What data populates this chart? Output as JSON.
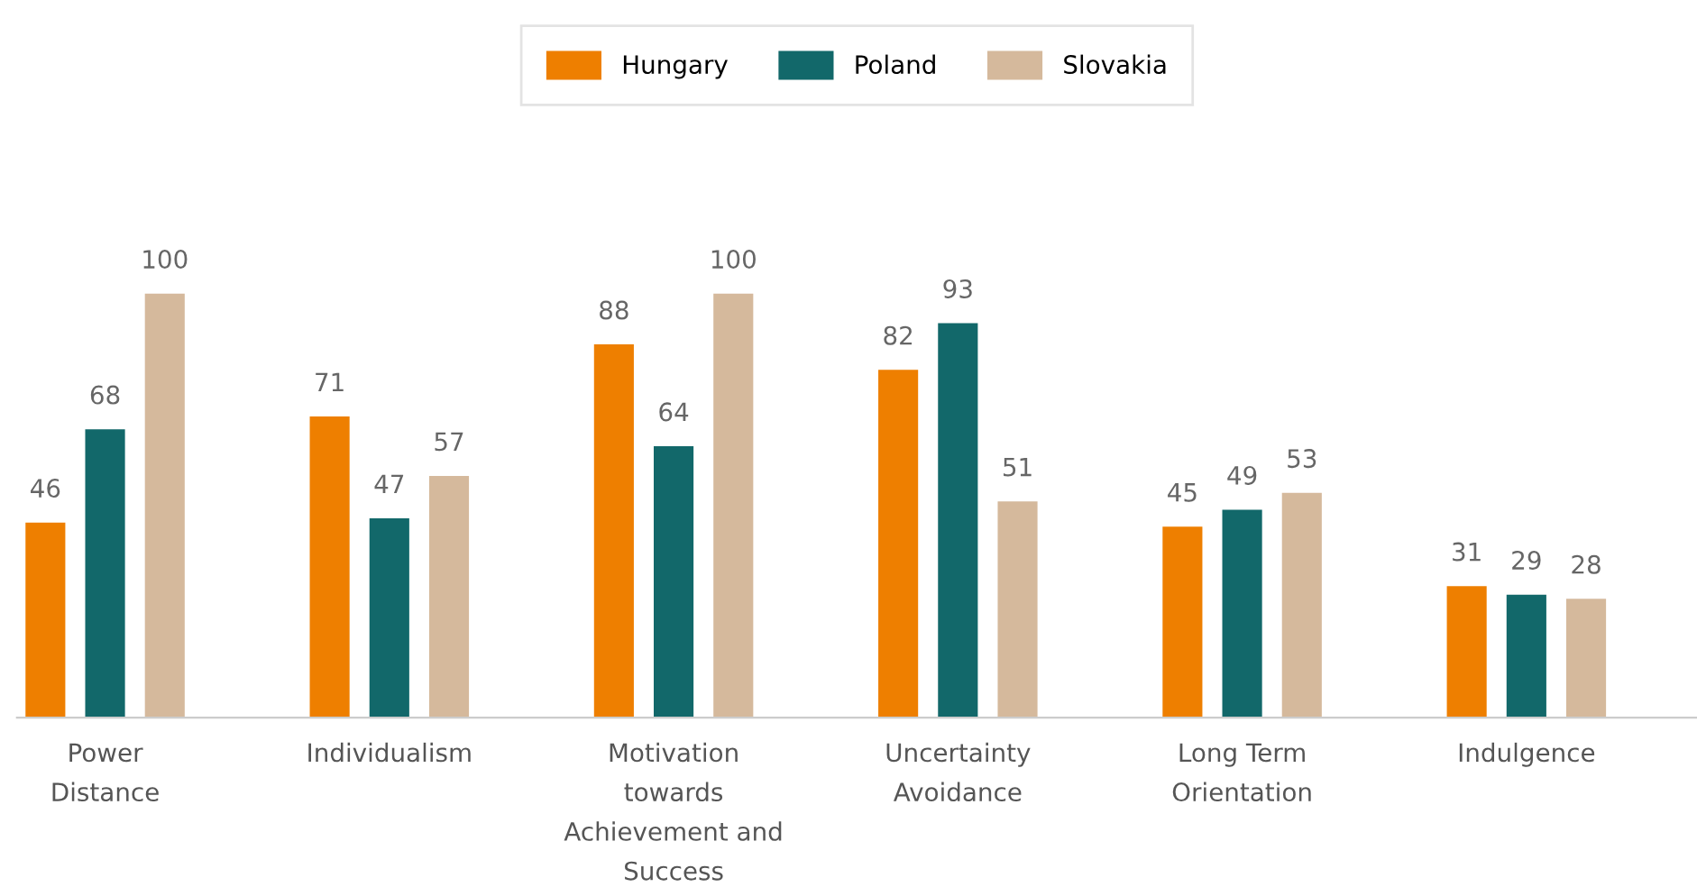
{
  "chart_data": {
    "type": "bar",
    "categories": [
      "Power\nDistance",
      "Individualism",
      "Motivation\ntowards\nAchievement and\nSuccess",
      "Uncertainty\nAvoidance",
      "Long Term\nOrientation",
      "Indulgence"
    ],
    "series": [
      {
        "name": "Hungary",
        "color": "#ee7f00",
        "values": [
          46,
          71,
          88,
          82,
          45,
          31
        ]
      },
      {
        "name": "Poland",
        "color": "#12686a",
        "values": [
          68,
          47,
          64,
          93,
          49,
          29
        ]
      },
      {
        "name": "Slovakia",
        "color": "#d5b99c",
        "values": [
          100,
          57,
          100,
          51,
          53,
          28
        ]
      }
    ],
    "data_labels": true,
    "grid": false,
    "legend": "top"
  }
}
